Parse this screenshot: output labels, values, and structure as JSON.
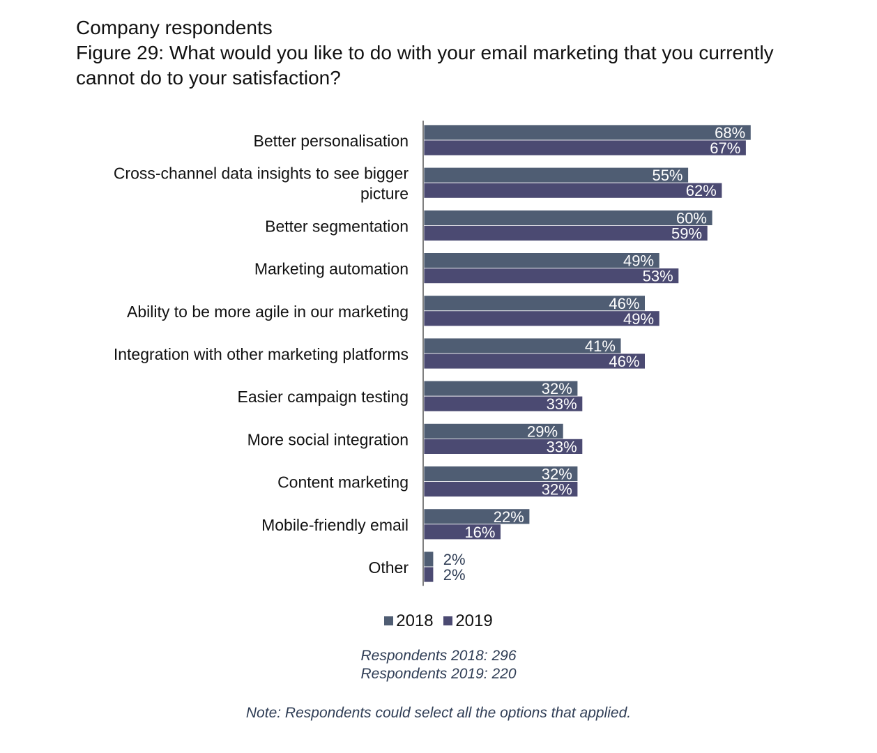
{
  "header": {
    "line1": "Company respondents",
    "line2": "Figure 29: What would you like to do with your email marketing that you currently",
    "line3": "cannot do to your satisfaction?"
  },
  "chart_data": {
    "type": "bar",
    "orientation": "horizontal",
    "unit": "%",
    "categories": [
      [
        "Better personalisation"
      ],
      [
        "Cross-channel data insights to see bigger",
        "picture"
      ],
      [
        "Better segmentation"
      ],
      [
        "Marketing automation"
      ],
      [
        "Ability to be more agile in our marketing"
      ],
      [
        "Integration with other marketing platforms"
      ],
      [
        "Easier campaign testing"
      ],
      [
        "More social integration"
      ],
      [
        "Content marketing"
      ],
      [
        "Mobile-friendly email"
      ],
      [
        "Other"
      ]
    ],
    "series": [
      {
        "name": "2018",
        "color": "#4f5d73",
        "values": [
          68,
          55,
          60,
          49,
          46,
          41,
          32,
          29,
          32,
          22,
          2
        ]
      },
      {
        "name": "2019",
        "color": "#4b4a72",
        "values": [
          67,
          62,
          59,
          53,
          49,
          46,
          33,
          33,
          32,
          16,
          2
        ]
      }
    ],
    "data_labels": true,
    "grid": false,
    "legend_position": "bottom"
  },
  "legend": {
    "items": [
      {
        "label": "2018",
        "color": "#4f5d73"
      },
      {
        "label": "2019",
        "color": "#4b4a72"
      }
    ]
  },
  "respondents": {
    "line1": "Respondents 2018: 296",
    "line2": "Respondents 2019: 220"
  },
  "note": "Note: Respondents could select all the options that applied."
}
